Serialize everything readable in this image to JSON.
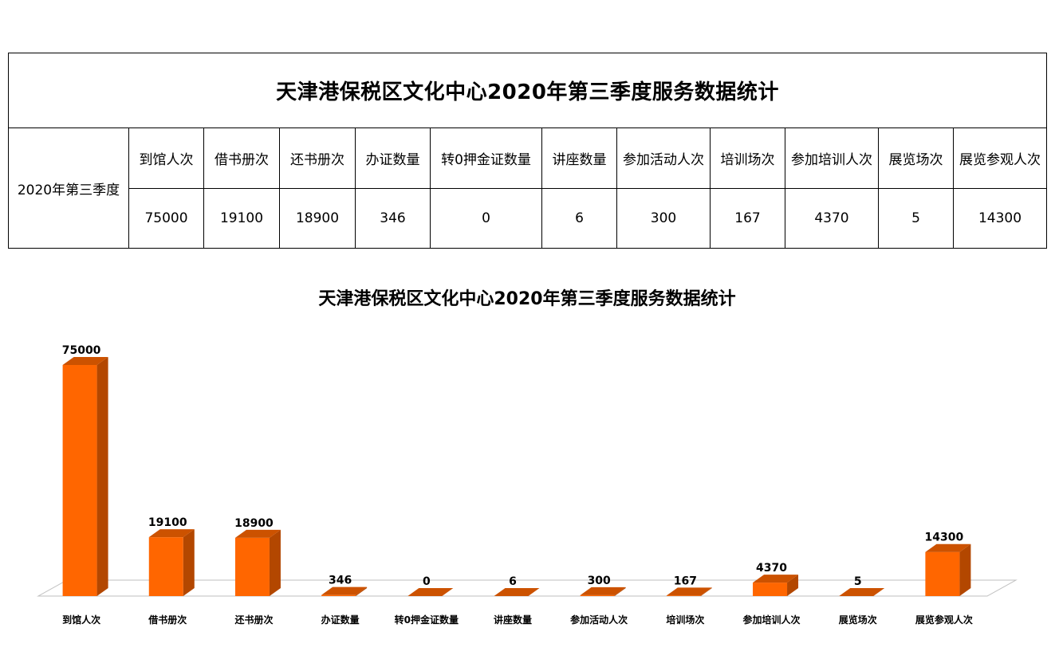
{
  "table": {
    "title": "天津港保税区文化中心2020年第三季度服务数据统计",
    "row_label": "2020年第三季度",
    "headers": [
      "到馆人次",
      "借书册次",
      "还书册次",
      "办证数量",
      "转0押金证数量",
      "讲座数量",
      "参加活动人次",
      "培训场次",
      "参加培训人次",
      "展览场次",
      "展览参观人次"
    ],
    "values": [
      "75000",
      "19100",
      "18900",
      "346",
      "0",
      "6",
      "300",
      "167",
      "4370",
      "5",
      "14300"
    ]
  },
  "chart_data": {
    "type": "bar",
    "title": "天津港保税区文化中心2020年第三季度服务数据统计",
    "categories": [
      "到馆人次",
      "借书册次",
      "还书册次",
      "办证数量",
      "转0押金证数量",
      "讲座数量",
      "参加活动人次",
      "培训场次",
      "参加培训人次",
      "展览场次",
      "展览参观人次"
    ],
    "values": [
      75000,
      19100,
      18900,
      346,
      0,
      6,
      300,
      167,
      4370,
      5,
      14300
    ],
    "ylim": [
      0,
      75000
    ],
    "grid": false,
    "legend": "none",
    "bar_color": "#FF6600",
    "bar_side_color": "#B34700",
    "bar_top_color": "#CC5200"
  }
}
